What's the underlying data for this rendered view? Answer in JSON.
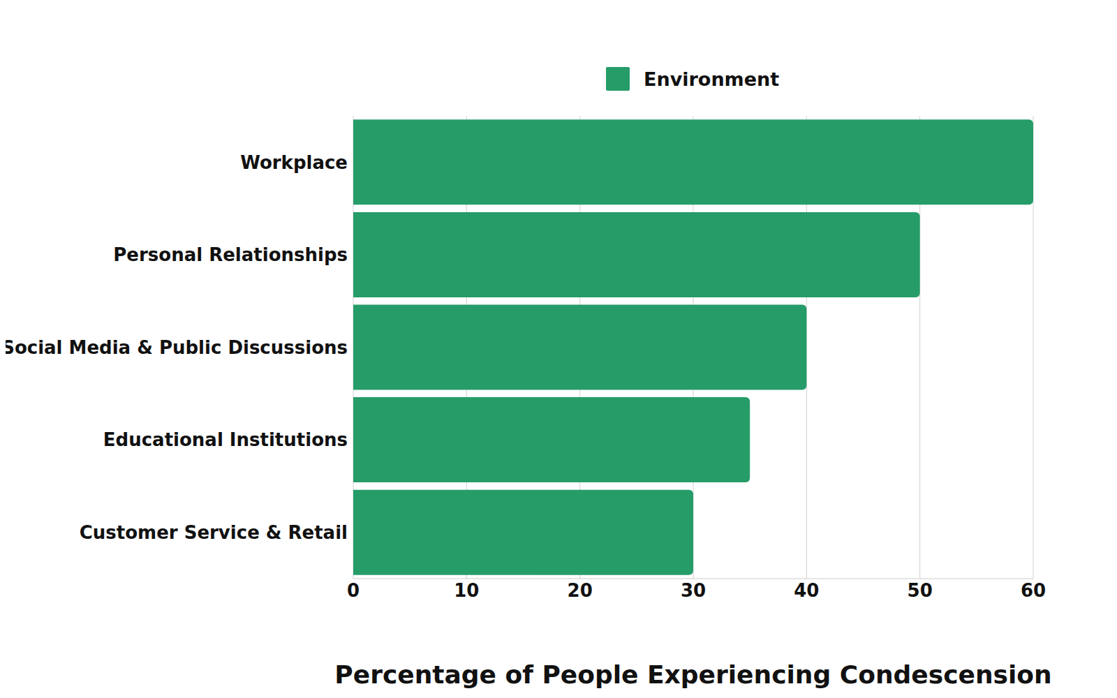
{
  "chart_data": {
    "type": "bar",
    "orientation": "horizontal",
    "x_label": "Percentage of People Experiencing Condescension",
    "categories": [
      "Workplace",
      "Personal Relationships",
      "Social Media & Public Discussions",
      "Educational Institutions",
      "Customer Service & Retail"
    ],
    "series": [
      {
        "name": "Environment",
        "color": "#269c69",
        "values": [
          60,
          50,
          40,
          35,
          30
        ]
      }
    ],
    "xlim": [
      0,
      60
    ],
    "xticks": [
      0,
      10,
      20,
      30,
      40,
      50,
      60
    ],
    "grid": true,
    "legend": "top"
  }
}
